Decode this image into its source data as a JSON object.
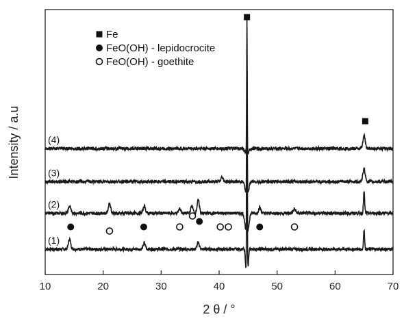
{
  "chart_data": {
    "type": "line",
    "xlabel": "2 θ / °",
    "ylabel": "Intensity / a.u",
    "xlim": [
      10,
      70
    ],
    "xticks": [
      "10",
      "20",
      "30",
      "40",
      "50",
      "60",
      "70"
    ],
    "yticks_shown": false,
    "grid": false,
    "legend_position": "top-left",
    "legend": [
      {
        "label": "Fe",
        "marker": "filled-square"
      },
      {
        "label": "FeO(OH) - lepidocrocite",
        "marker": "filled-circle"
      },
      {
        "label": "FeO(OH) - goethite",
        "marker": "open-circle"
      }
    ],
    "series": [
      {
        "name": "(1)",
        "baseline": 0.0,
        "peaks": [
          {
            "x": 14.2,
            "h": 0.07
          },
          {
            "x": 27.1,
            "h": 0.04
          },
          {
            "x": 36.4,
            "h": 0.045
          },
          {
            "x": 44.6,
            "h": -0.12
          },
          {
            "x": 44.8,
            "h": 1.35
          },
          {
            "x": 45.0,
            "h": -0.12
          },
          {
            "x": 65.0,
            "h": 0.13
          }
        ]
      },
      {
        "name": "(2)",
        "baseline": 0.25,
        "peaks": [
          {
            "x": 14.2,
            "h": 0.05
          },
          {
            "x": 21.1,
            "h": 0.07
          },
          {
            "x": 27.1,
            "h": 0.05
          },
          {
            "x": 33.2,
            "h": 0.03
          },
          {
            "x": 35.3,
            "h": 0.05
          },
          {
            "x": 36.4,
            "h": 0.09
          },
          {
            "x": 44.6,
            "h": -0.1
          },
          {
            "x": 44.8,
            "h": 1.1
          },
          {
            "x": 45.0,
            "h": -0.1
          },
          {
            "x": 47.0,
            "h": 0.04
          },
          {
            "x": 53.0,
            "h": 0.03
          },
          {
            "x": 65.0,
            "h": 0.15
          }
        ]
      },
      {
        "name": "(3)",
        "baseline": 0.47,
        "peaks": [
          {
            "x": 40.5,
            "h": 0.03
          },
          {
            "x": 44.6,
            "h": -0.06
          },
          {
            "x": 44.8,
            "h": 0.95
          },
          {
            "x": 45.0,
            "h": -0.06
          },
          {
            "x": 65.0,
            "h": 0.09
          }
        ]
      },
      {
        "name": "(4)",
        "baseline": 0.7,
        "peaks": [
          {
            "x": 44.6,
            "h": -0.03
          },
          {
            "x": 44.8,
            "h": 0.93
          },
          {
            "x": 45.0,
            "h": -0.03
          },
          {
            "x": 65.0,
            "h": 0.09
          }
        ]
      }
    ],
    "annotations": [
      {
        "marker": "filled-square",
        "x": 44.8,
        "series": "(4)",
        "phase": "Fe"
      },
      {
        "marker": "filled-square",
        "x": 65.2,
        "series": "(4)",
        "phase": "Fe"
      },
      {
        "marker": "filled-circle",
        "x": 14.4,
        "series": "(2)",
        "phase": "FeO(OH) - lepidocrocite"
      },
      {
        "marker": "filled-circle",
        "x": 27.0,
        "series": "(2)",
        "phase": "FeO(OH) - lepidocrocite"
      },
      {
        "marker": "filled-circle",
        "x": 36.6,
        "series": "(2)",
        "phase": "FeO(OH) - lepidocrocite"
      },
      {
        "marker": "filled-circle",
        "x": 47.0,
        "series": "(2)",
        "phase": "FeO(OH) - lepidocrocite"
      },
      {
        "marker": "open-circle",
        "x": 21.1,
        "series": "(2)",
        "phase": "FeO(OH) - goethite"
      },
      {
        "marker": "open-circle",
        "x": 33.2,
        "series": "(2)",
        "phase": "FeO(OH) - goethite"
      },
      {
        "marker": "open-circle",
        "x": 35.4,
        "series": "(2)",
        "phase": "FeO(OH) - goethite"
      },
      {
        "marker": "open-circle",
        "x": 40.2,
        "series": "(2)",
        "phase": "FeO(OH) - goethite"
      },
      {
        "marker": "open-circle",
        "x": 41.6,
        "series": "(2)",
        "phase": "FeO(OH) - goethite"
      },
      {
        "marker": "open-circle",
        "x": 53.0,
        "series": "(2)",
        "phase": "FeO(OH) - goethite"
      }
    ]
  }
}
